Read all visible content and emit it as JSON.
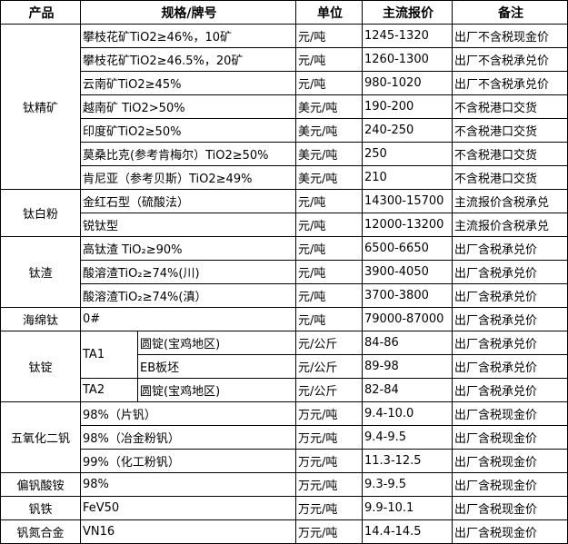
{
  "headers": [
    "产品",
    "规格/牌号",
    "单位",
    "主流报价",
    "备注"
  ],
  "groups": [
    {
      "product": "钛精矿",
      "rows": [
        {
          "spec": "攀枝花矿TiO2≥46%，10矿",
          "unit": "元/吨",
          "price": "1245-1320",
          "note": "出厂不含税现金价"
        },
        {
          "spec": "攀枝花矿TiO2≥46.5%，20矿",
          "unit": "元/吨",
          "price": "1260-1300",
          "note": "出厂不含税承兑价"
        },
        {
          "spec": "云南矿TiO2≥45%",
          "unit": "元/吨",
          "price": "980-1020",
          "note": "出厂不含税承兑价"
        },
        {
          "spec": "越南矿 TiO2>50%",
          "unit": "美元/吨",
          "price": "190-200",
          "note": "不含税港口交货"
        },
        {
          "spec": "印度矿TiO2≥50%",
          "unit": "美元/吨",
          "price": "240-250",
          "note": "不含税港口交货"
        },
        {
          "spec": "莫桑比克(参考肯梅尔）TiO2≥50%",
          "unit": "美元/吨",
          "price": "250",
          "note": "不含税港口交货"
        },
        {
          "spec": "肯尼亚（参考贝斯）TiO2≥49%",
          "unit": "美元/吨",
          "price": "210",
          "note": "不含税港口交货"
        }
      ]
    },
    {
      "product": "钛白粉",
      "rows": [
        {
          "spec": "金红石型（硫酸法）",
          "unit": "元/吨",
          "price": "14300-15700",
          "note": "主流报价含税承兑"
        },
        {
          "spec": "锐钛型",
          "unit": "元/吨",
          "price": "12000-13200",
          "note": "主流报价含税承兑"
        }
      ]
    },
    {
      "product": "钛渣",
      "rows": [
        {
          "spec": "高钛渣 TiO₂≥90%",
          "unit": "元/吨",
          "price": "6500-6650",
          "note": "出厂含税承兑价"
        },
        {
          "spec": "酸溶渣TiO₂≥74%(川)",
          "unit": "元/吨",
          "price": "3900-4050",
          "note": "出厂含税承兑价"
        },
        {
          "spec": "酸溶渣TiO₂≥74%(滇）",
          "unit": "元/吨",
          "price": "3700-3800",
          "note": "出厂含税承兑价"
        }
      ]
    },
    {
      "product": "海绵钛",
      "rows": [
        {
          "spec": "0#",
          "unit": "元/吨",
          "price": "79000-87000",
          "note": "出厂含税承兑价"
        }
      ]
    },
    {
      "product": "钛锭",
      "subgroups": [
        {
          "grade": "TA1",
          "rows": [
            {
              "spec": "圆锭(宝鸡地区)",
              "unit": "元/公斤",
              "price": "84-86",
              "note": "出厂含税承兑价"
            },
            {
              "spec": "EB板坯",
              "unit": "元/公斤",
              "price": "89-98",
              "note": "出厂含税承兑价"
            }
          ]
        },
        {
          "grade": "TA2",
          "rows": [
            {
              "spec": "圆锭(宝鸡地区)",
              "unit": "元/公斤",
              "price": "82-84",
              "note": "出厂含税承兑价"
            }
          ]
        }
      ]
    },
    {
      "product": "五氧化二钒",
      "rows": [
        {
          "spec": "98%（片钒）",
          "unit": "万元/吨",
          "price": "9.4-10.0",
          "note": "出厂含税现金价"
        },
        {
          "spec": "98%（冶金粉钒）",
          "unit": "万元/吨",
          "price": "9.4-9.5",
          "note": "出厂含税现金价"
        },
        {
          "spec": "99%（化工粉钒）",
          "unit": "万元/吨",
          "price": "11.3-12.5",
          "note": "出厂含税现金价"
        }
      ]
    },
    {
      "product": "偏钒酸铵",
      "rows": [
        {
          "spec": "98%",
          "unit": "万元/吨",
          "price": "9.3-9.5",
          "note": "出厂含税现金价"
        }
      ]
    },
    {
      "product": "钒铁",
      "rows": [
        {
          "spec": "FeV50",
          "unit": "万元/吨",
          "price": "9.9-10.1",
          "note": "出厂含税现金价"
        }
      ]
    },
    {
      "product": "钒氮合金",
      "rows": [
        {
          "spec": "VN16",
          "unit": "万元/吨",
          "price": "14.4-14.5",
          "note": "出厂含税现金价"
        }
      ]
    }
  ]
}
